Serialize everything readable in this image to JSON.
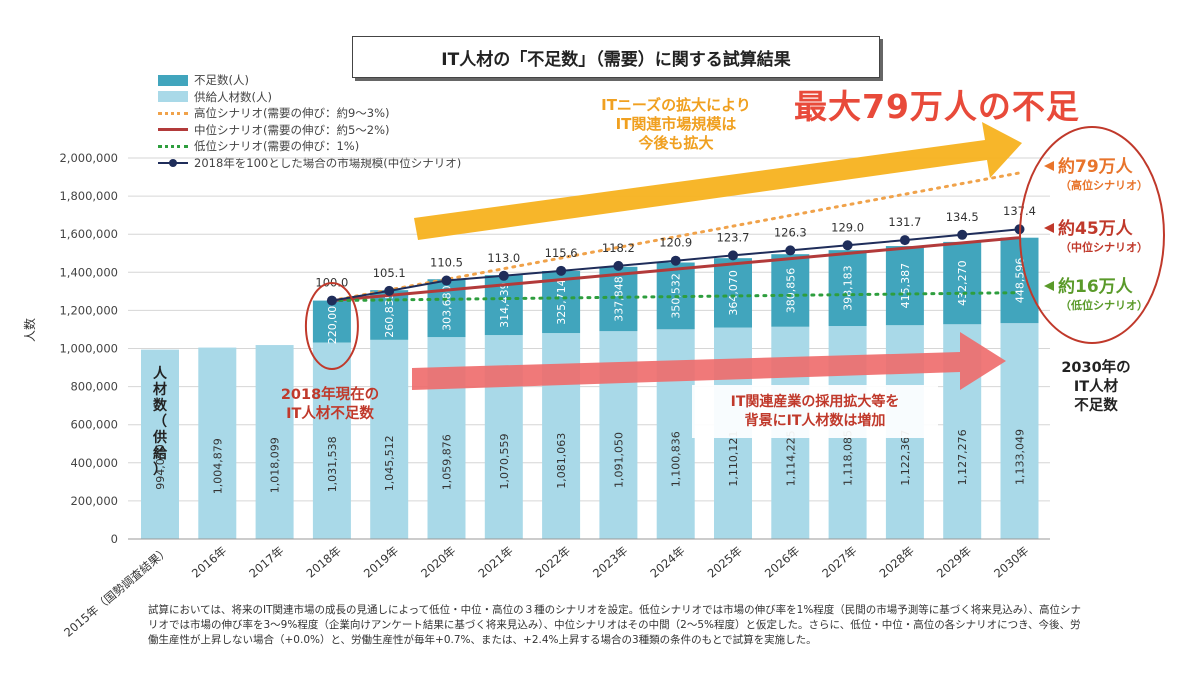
{
  "title": "IT人材の「不足数」（需要）に関する試算結果",
  "headline": "最大79万人の不足",
  "legend": [
    {
      "label": "不足数(人)",
      "kind": "box",
      "color": "#41a5bd"
    },
    {
      "label": "供給人材数(人)",
      "kind": "box",
      "color": "#a9d9e8"
    },
    {
      "label": "高位シナリオ(需要の伸び：約9～3%)",
      "kind": "dots",
      "color": "#f0a24a"
    },
    {
      "label": "中位シナリオ(需要の伸び：約5～2%)",
      "kind": "line",
      "color": "#b23a3a"
    },
    {
      "label": "低位シナリオ(需要の伸び：1%)",
      "kind": "dots",
      "color": "#2e9e3e"
    },
    {
      "label": "2018年を100とした場合の市場規模(中位シナリオ)",
      "kind": "marker",
      "color": "#1f2d5a"
    }
  ],
  "annotations": {
    "market_expansion": [
      "ITニーズの拡大により",
      "IT関連市場規模は",
      "今後も拡大"
    ],
    "current_shortage": [
      "2018年現在の",
      "IT人材不足数"
    ],
    "supply_increase": [
      "IT関連産業の採用拡大等を",
      "背景にIT人材数は増加"
    ],
    "supply_vertical": [
      "人",
      "材",
      "数",
      "（",
      "供",
      "給",
      "）"
    ],
    "high_result": "約79万人",
    "high_label": "（高位シナリオ）",
    "mid_result": "約45万人",
    "mid_label": "（中位シナリオ）",
    "low_result": "約16万人",
    "low_label": "（低位シナリオ）",
    "shortage_2030": [
      "2030年の",
      "IT人材",
      "不足数"
    ]
  },
  "colors": {
    "shortage": "#41a5bd",
    "supply": "#a9d9e8",
    "high": "#f0a24a",
    "mid": "#b23a3a",
    "low": "#2e9e3e",
    "index": "#1f2d5a",
    "accent_red": "#c0392b",
    "arrow_yellow": "#f7b21f",
    "arrow_pink": "#ee6a6a"
  },
  "footnote": "試算においては、将来のIT関連市場の成長の見通しによって低位・中位・高位の３種のシナリオを設定。低位シナリオでは市場の伸び率を1%程度（民間の市場予測等に基づく将来見込み）、高位シナリオでは市場の伸び率を3～9%程度（企業向けアンケート結果に基づく将来見込み）、中位シナリオはその中間（2～5%程度）と仮定した。さらに、低位・中位・高位の各シナリオにつき、今後、労働生産性が上昇しない場合（+0.0%）と、労働生産性が毎年+0.7%、または、+2.4%上昇する場合の3種類の条件のもとで試算を実施した。",
  "chart_data": {
    "type": "bar",
    "ylabel": "人数",
    "ylim": [
      0,
      2000000
    ],
    "yticks": [
      "0",
      "200,000",
      "400,000",
      "600,000",
      "800,000",
      "1,000,000",
      "1,200,000",
      "1,400,000",
      "1,600,000",
      "1,800,000",
      "2,000,000"
    ],
    "categories": [
      "2015年（国勢調査結果）",
      "2016年",
      "2017年",
      "2018年",
      "2019年",
      "2020年",
      "2021年",
      "2022年",
      "2023年",
      "2024年",
      "2025年",
      "2026年",
      "2027年",
      "2028年",
      "2029年",
      "2030年"
    ],
    "supply": [
      994070,
      1004879,
      1018099,
      1031538,
      1045512,
      1059876,
      1070559,
      1081063,
      1091050,
      1100836,
      1110121,
      1114225,
      1118085,
      1122367,
      1127276,
      1133049
    ],
    "supply_labels": [
      "994,070",
      "1,004,879",
      "1,018,099",
      "1,031,538",
      "1,045,512",
      "1,059,876",
      "1,070,559",
      "1,081,063",
      "1,091,050",
      "1,100,836",
      "1,110,121",
      "1,114,225",
      "1,118,085",
      "1,122,367",
      "1,127,276",
      "1,133,049"
    ],
    "shortage": [
      null,
      null,
      null,
      220000,
      260835,
      303680,
      314439,
      325714,
      337848,
      350532,
      364070,
      380856,
      398183,
      415387,
      432270,
      448596
    ],
    "shortage_labels": [
      null,
      null,
      null,
      "220,000",
      "260,835",
      "303,680",
      "314,439",
      "325,714",
      "337,848",
      "350,532",
      "364,070",
      "380,856",
      "398,183",
      "415,387",
      "432,270",
      "448,596"
    ],
    "market_index": [
      null,
      null,
      null,
      100.0,
      105.1,
      110.5,
      113.0,
      115.6,
      118.2,
      120.9,
      123.7,
      126.3,
      129.0,
      131.7,
      134.5,
      137.4
    ],
    "market_index_labels": [
      null,
      null,
      null,
      "100.0",
      "105.1",
      "110.5",
      "113.0",
      "115.6",
      "118.2",
      "120.9",
      "123.7",
      "126.3",
      "129.0",
      "131.7",
      "134.5",
      "137.4"
    ],
    "scenarios": {
      "high": {
        "start": 1251538,
        "end_2030": 1921645
      },
      "mid": {
        "start": 1251538,
        "end_2030": 1581645
      },
      "low": {
        "start": 1251538,
        "end_2030": 1293049
      }
    }
  }
}
